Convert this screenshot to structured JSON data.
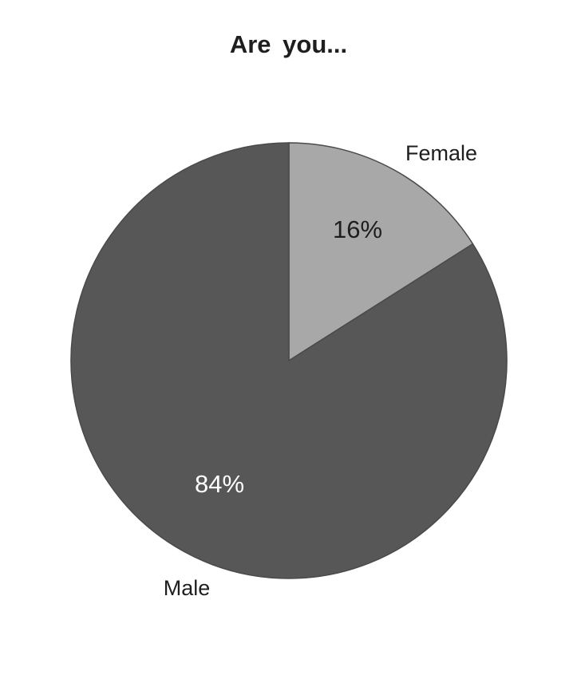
{
  "chart_data": {
    "type": "pie",
    "title": "Are  you...",
    "slices": [
      {
        "label": "Female",
        "value": 16,
        "data_label": "16%",
        "color": "#a8a8a8",
        "label_color": "#1e1e1e"
      },
      {
        "label": "Male",
        "value": 84,
        "data_label": "84%",
        "color": "#575757",
        "label_color": "#ffffff"
      }
    ],
    "start_angle": "12 o'clock",
    "direction": "clockwise",
    "legend": "none"
  }
}
